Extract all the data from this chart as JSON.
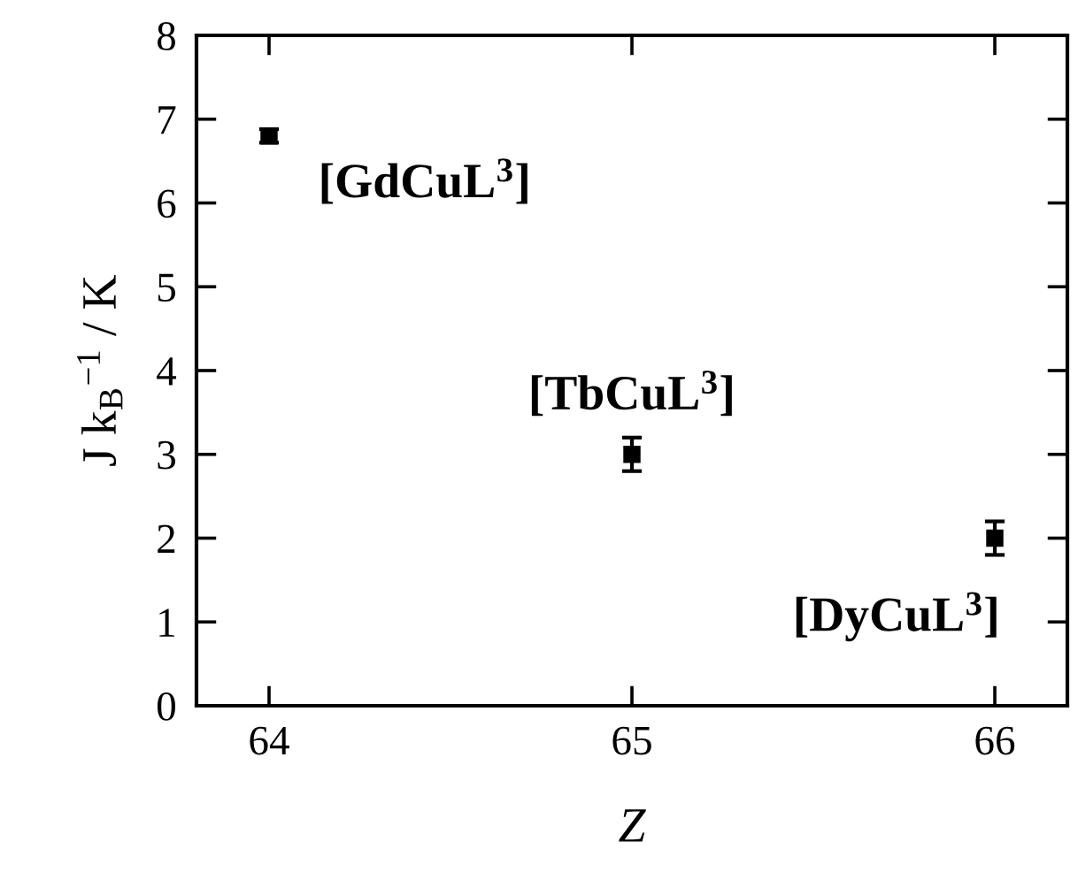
{
  "chart_data": {
    "type": "scatter",
    "xlabel": "Z",
    "ylabel": "J k$_{B}$$^{−1}$ / K",
    "x": [
      64,
      65,
      66
    ],
    "series": [
      {
        "color": "#000000",
        "values": [
          6.8,
          3.0,
          2.0
        ],
        "errors": [
          0.08,
          0.2,
          0.2
        ]
      }
    ],
    "marker": "square",
    "xlim": [
      63.8,
      66.2
    ],
    "xticks": [
      64,
      65,
      66
    ],
    "ylim": [
      0,
      8
    ],
    "yticks": [
      0,
      1,
      2,
      3,
      4,
      5,
      6,
      7,
      8
    ],
    "annotations": [
      {
        "text": "[GdCuL$^{3}$]",
        "x": 64,
        "y": 6.8
      },
      {
        "text": "[TbCuL$^{3}$]",
        "x": 65,
        "y": 3.0
      },
      {
        "text": "[DyCuL$^{3}$]",
        "x": 66,
        "y": 2.0
      }
    ],
    "grid": false
  }
}
